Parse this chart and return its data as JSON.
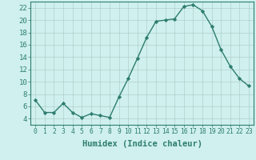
{
  "x": [
    0,
    1,
    2,
    3,
    4,
    5,
    6,
    7,
    8,
    9,
    10,
    11,
    12,
    13,
    14,
    15,
    16,
    17,
    18,
    19,
    20,
    21,
    22,
    23
  ],
  "y": [
    7,
    5,
    5,
    6.5,
    5,
    4.2,
    4.8,
    4.5,
    4.2,
    7.5,
    10.5,
    13.8,
    17.2,
    19.8,
    20.0,
    20.2,
    22.2,
    22.5,
    21.5,
    19,
    15.2,
    12.5,
    10.5,
    9.3
  ],
  "line_color": "#2e7d6e",
  "marker": "D",
  "markersize": 2.2,
  "linewidth": 1.0,
  "bg_color": "#cff0ee",
  "grid_color": "#aecfcc",
  "xlabel": "Humidex (Indice chaleur)",
  "ylim": [
    3,
    23
  ],
  "xlim": [
    -0.5,
    23.5
  ],
  "yticks": [
    4,
    6,
    8,
    10,
    12,
    14,
    16,
    18,
    20,
    22
  ],
  "xticks": [
    0,
    1,
    2,
    3,
    4,
    5,
    6,
    7,
    8,
    9,
    10,
    11,
    12,
    13,
    14,
    15,
    16,
    17,
    18,
    19,
    20,
    21,
    22,
    23
  ],
  "tick_color": "#2e7d6e",
  "xlabel_fontsize": 7.5,
  "ytick_fontsize": 6.5,
  "xtick_fontsize": 5.8
}
